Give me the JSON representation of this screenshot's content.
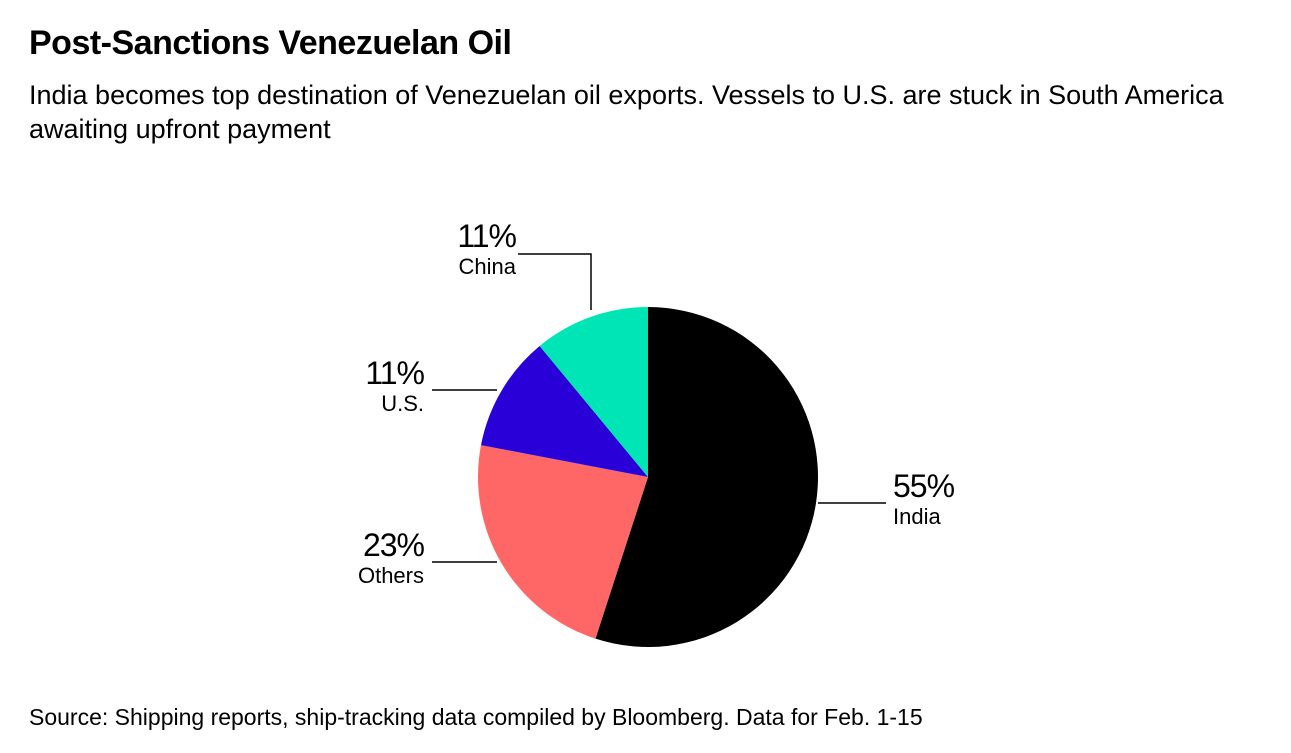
{
  "chart_data": {
    "type": "pie",
    "title": "Post-Sanctions Venezuelan Oil",
    "subtitle": "India becomes top destination of Venezuelan oil exports. Vessels to U.S. are stuck in South America awaiting upfront payment",
    "source": "Source: Shipping reports, ship-tracking data compiled by Bloomberg. Data for Feb. 1-15",
    "slices": [
      {
        "label": "India",
        "value": 55,
        "value_label": "55%",
        "color": "#000000"
      },
      {
        "label": "Others",
        "value": 23,
        "value_label": "23%",
        "color": "#ff6666"
      },
      {
        "label": "U.S.",
        "value": 11,
        "value_label": "11%",
        "color": "#2a00d8"
      },
      {
        "label": "China",
        "value": 11,
        "value_label": "11%",
        "color": "#00e5b5"
      }
    ]
  }
}
